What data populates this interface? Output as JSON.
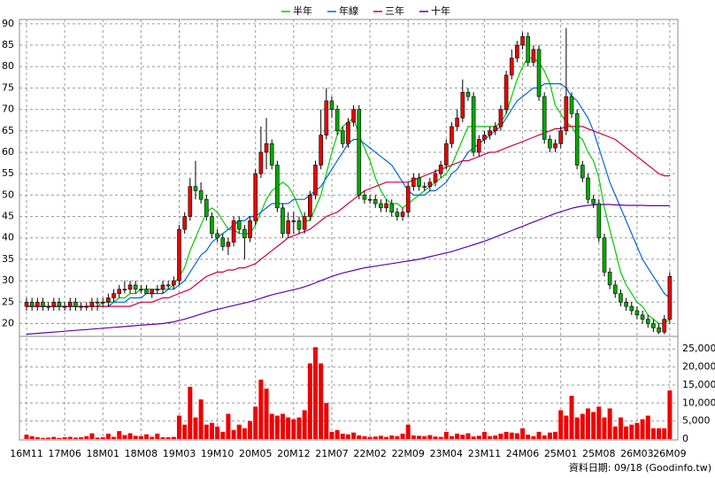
{
  "chart_data": {
    "type": "candlestick",
    "footer": "資料日期: 09/18 (Goodinfo.tw)",
    "categories": [
      "16M11",
      null,
      null,
      null,
      null,
      null,
      null,
      "17M06",
      null,
      null,
      null,
      null,
      null,
      null,
      "18M01",
      null,
      null,
      null,
      null,
      null,
      null,
      "18M08",
      null,
      null,
      null,
      null,
      null,
      null,
      "19M03",
      null,
      null,
      null,
      null,
      null,
      null,
      "19M10",
      null,
      null,
      null,
      null,
      null,
      null,
      "20M05",
      null,
      null,
      null,
      null,
      null,
      null,
      "20M12",
      null,
      null,
      null,
      null,
      null,
      null,
      "21M07",
      null,
      null,
      null,
      null,
      null,
      null,
      "22M02",
      null,
      null,
      null,
      null,
      null,
      null,
      "22M09",
      null,
      null,
      null,
      null,
      null,
      null,
      "23M04",
      null,
      null,
      null,
      null,
      null,
      null,
      "23M11",
      null,
      null,
      null,
      null,
      null,
      null,
      "24M06",
      null,
      null,
      null,
      null,
      null,
      null,
      "25M01",
      null,
      null,
      null,
      null,
      null,
      null,
      "25M08",
      null,
      null,
      null,
      null,
      null,
      null,
      "26M03",
      null,
      null,
      null,
      null,
      null,
      "26M09"
    ],
    "open": [
      24,
      25,
      24,
      25,
      24,
      24,
      25,
      24,
      24,
      25,
      24,
      24,
      24,
      25,
      25,
      25,
      26,
      27,
      28,
      28,
      29,
      28,
      28,
      27,
      28,
      28,
      29,
      29,
      30,
      42,
      45,
      52,
      51,
      49,
      45,
      41,
      40,
      38,
      39,
      44,
      42,
      40,
      44,
      55,
      60,
      62,
      57,
      47,
      41,
      44,
      44,
      42,
      45,
      50,
      57,
      64,
      72,
      70,
      65,
      62,
      67,
      70,
      50,
      49,
      49,
      48,
      47,
      48,
      46,
      45,
      46,
      52,
      54,
      52,
      52,
      53,
      55,
      57,
      62,
      66,
      68,
      74,
      73,
      60,
      63,
      64,
      65,
      66,
      70,
      78,
      82,
      85,
      87,
      81,
      84,
      73,
      63,
      61,
      62,
      65,
      73,
      69,
      57,
      54,
      49,
      48,
      40,
      32,
      29,
      27,
      25,
      24,
      23,
      22,
      21,
      20,
      19,
      18,
      21
    ],
    "high": [
      26,
      26,
      26,
      26,
      25,
      26,
      26,
      25,
      26,
      26,
      25,
      25,
      26,
      26,
      26,
      27,
      28,
      29,
      30,
      30,
      30,
      29,
      29,
      28,
      29,
      30,
      30,
      31,
      43,
      46,
      54,
      58,
      53,
      50,
      46,
      42,
      41,
      40,
      45,
      45,
      43,
      45,
      56,
      66,
      68,
      63,
      58,
      48,
      46,
      46,
      45,
      46,
      51,
      58,
      70,
      75,
      73,
      71,
      66,
      68,
      71,
      71,
      51,
      50,
      50,
      49,
      49,
      49,
      47,
      47,
      53,
      55,
      55,
      53,
      54,
      56,
      58,
      63,
      67,
      70,
      77,
      75,
      74,
      64,
      65,
      66,
      67,
      71,
      79,
      84,
      86,
      88,
      88,
      85,
      85,
      74,
      64,
      63,
      66,
      89,
      74,
      70,
      58,
      55,
      50,
      49,
      41,
      33,
      30,
      28,
      26,
      25,
      24,
      23,
      22,
      21,
      20,
      22,
      32
    ],
    "low": [
      23,
      23,
      23,
      23,
      23,
      23,
      23,
      23,
      23,
      23,
      23,
      23,
      23,
      23,
      24,
      24,
      25,
      26,
      27,
      27,
      27,
      27,
      27,
      26,
      27,
      27,
      28,
      28,
      29,
      41,
      44,
      49,
      48,
      44,
      40,
      39,
      37,
      36,
      38,
      41,
      35,
      39,
      43,
      54,
      56,
      56,
      46,
      40,
      40,
      41,
      41,
      41,
      44,
      49,
      56,
      63,
      68,
      64,
      61,
      61,
      66,
      49,
      48,
      48,
      47,
      46,
      46,
      45,
      44,
      44,
      45,
      51,
      51,
      51,
      51,
      52,
      54,
      56,
      61,
      65,
      67,
      72,
      59,
      59,
      62,
      63,
      64,
      65,
      69,
      77,
      81,
      84,
      80,
      80,
      72,
      62,
      60,
      60,
      61,
      64,
      68,
      56,
      53,
      48,
      47,
      39,
      31,
      28,
      26,
      24,
      23,
      22,
      21,
      20,
      19,
      18,
      17.5,
      17.5,
      20
    ],
    "close": [
      25,
      24,
      25,
      24,
      24,
      25,
      24,
      24,
      25,
      24,
      24,
      24,
      25,
      25,
      25,
      26,
      27,
      28,
      28,
      29,
      28,
      28,
      27,
      28,
      28,
      29,
      29,
      30,
      42,
      45,
      52,
      51,
      49,
      45,
      41,
      40,
      38,
      39,
      44,
      42,
      40,
      44,
      55,
      60,
      62,
      57,
      47,
      41,
      44,
      44,
      42,
      45,
      50,
      57,
      64,
      72,
      70,
      65,
      62,
      67,
      70,
      50,
      49,
      49,
      48,
      47,
      48,
      46,
      45,
      46,
      52,
      54,
      52,
      52,
      53,
      55,
      57,
      62,
      66,
      68,
      74,
      73,
      60,
      63,
      64,
      65,
      66,
      70,
      78,
      82,
      85,
      87,
      81,
      84,
      73,
      63,
      61,
      62,
      65,
      73,
      69,
      57,
      54,
      49,
      48,
      40,
      32,
      29,
      27,
      25,
      24,
      23,
      22,
      21,
      20,
      19,
      18,
      21,
      31
    ],
    "volume": [
      1200,
      800,
      500,
      300,
      400,
      600,
      300,
      500,
      600,
      400,
      500,
      800,
      1600,
      400,
      500,
      1500,
      600,
      2200,
      1100,
      1600,
      900,
      800,
      1300,
      600,
      1500,
      500,
      500,
      600,
      6500,
      4000,
      14500,
      6000,
      11000,
      4000,
      4500,
      3500,
      2000,
      7000,
      2500,
      4000,
      3000,
      5000,
      9000,
      16500,
      14000,
      7000,
      6500,
      7000,
      6000,
      5500,
      6000,
      8000,
      21000,
      25500,
      21000,
      10000,
      2000,
      2500,
      1500,
      1300,
      1800,
      1000,
      800,
      600,
      700,
      900,
      600,
      1000,
      800,
      1500,
      4000,
      1000,
      900,
      800,
      1100,
      700,
      600,
      2000,
      800,
      1500,
      1200,
      1600,
      700,
      900,
      2000,
      800,
      1000,
      1500,
      2000,
      1800,
      1600,
      3000,
      1200,
      800,
      2000,
      1000,
      1800,
      2000,
      8000,
      6500,
      12000,
      6000,
      7000,
      8500,
      7500,
      9000,
      6000,
      8500,
      3500,
      6000,
      3500,
      4000,
      4500,
      5500,
      6500,
      3000,
      3000,
      3000,
      13500
    ],
    "up_color": "#ee0000",
    "down_color": "#00aa00",
    "volume_color": "#ee0000",
    "series": [
      {
        "name": "半年",
        "color": "#00cc00",
        "values": [
          24,
          24,
          24,
          24,
          24,
          24,
          24,
          24,
          24,
          24,
          24,
          24,
          24,
          24,
          25,
          25,
          25,
          26,
          26,
          27,
          27,
          28,
          28,
          28,
          28,
          28,
          28,
          29,
          31,
          33,
          37,
          40,
          43,
          46,
          47,
          46,
          44,
          42,
          42,
          41,
          41,
          41,
          43,
          46,
          49,
          51,
          52,
          53,
          52,
          50,
          47,
          44,
          44,
          47,
          50,
          55,
          60,
          64,
          66,
          67,
          68,
          64,
          61,
          58,
          54,
          51,
          49,
          48,
          48,
          47,
          48,
          49,
          50,
          51,
          52,
          53,
          54,
          55,
          57,
          60,
          63,
          66,
          66,
          66,
          66,
          66,
          66,
          67,
          69,
          73,
          77,
          80,
          82,
          82,
          81,
          79,
          76,
          71,
          69,
          67,
          66,
          64,
          63,
          60,
          58,
          54,
          47,
          42,
          37,
          32,
          29,
          27,
          25,
          24,
          22,
          21,
          20,
          20,
          21
        ]
      },
      {
        "name": "年線",
        "color": "#0066dd",
        "values": [
          24,
          24,
          24,
          24,
          24,
          24,
          24,
          24,
          24,
          24,
          24,
          24,
          24,
          24,
          24,
          24,
          25,
          25,
          25,
          26,
          26,
          26,
          27,
          27,
          27,
          27,
          28,
          28,
          29,
          30,
          32,
          34,
          36,
          37,
          39,
          40,
          41,
          42,
          43,
          44,
          44,
          45,
          45,
          46,
          47,
          48,
          48,
          48,
          48,
          49,
          49,
          49,
          50,
          51,
          52,
          54,
          56,
          58,
          60,
          62,
          63,
          63,
          62,
          61,
          60,
          59,
          58,
          57,
          55,
          53,
          51,
          50,
          50,
          50,
          51,
          51,
          52,
          53,
          55,
          56,
          58,
          60,
          61,
          62,
          63,
          64,
          65,
          66,
          68,
          70,
          72,
          73,
          74,
          75,
          75,
          76,
          76,
          76,
          76,
          75,
          73,
          72,
          70,
          68,
          65,
          61,
          57,
          53,
          50,
          47,
          44,
          41,
          38,
          35,
          33,
          31,
          29,
          27,
          26
        ]
      },
      {
        "name": "三年",
        "color": "#cc0044",
        "values": [
          24,
          24,
          24,
          24,
          24,
          24,
          24,
          24,
          24,
          24,
          24,
          24,
          24,
          24,
          24,
          24,
          24,
          24,
          24,
          24,
          24.5,
          25,
          25,
          25,
          25.5,
          26,
          26,
          26.5,
          27,
          27.5,
          28,
          29,
          30,
          31,
          31.5,
          32,
          32,
          32.5,
          32.5,
          33,
          33,
          33.5,
          34,
          35,
          36,
          37,
          38,
          39,
          40,
          40.5,
          41,
          41.5,
          42,
          43,
          44,
          45,
          45.5,
          46,
          47,
          48,
          49,
          50,
          51,
          51.5,
          52,
          52.5,
          53,
          53,
          53,
          53,
          53,
          53.5,
          54,
          54.5,
          55,
          55.5,
          56,
          56.5,
          57,
          57.5,
          58,
          58,
          58.5,
          59,
          59.5,
          60,
          60,
          60.5,
          61,
          61.5,
          62,
          62.5,
          63,
          63.5,
          64,
          64.5,
          65,
          65.5,
          65.5,
          66,
          66,
          66,
          66,
          65.5,
          65,
          64.5,
          64,
          63.5,
          63,
          62,
          61,
          60,
          59,
          58,
          57,
          56,
          55,
          54.5,
          54.5
        ]
      },
      {
        "name": "十年",
        "color": "#6600aa",
        "values": [
          17.5,
          17.6,
          17.7,
          17.8,
          17.9,
          18,
          18.1,
          18.2,
          18.3,
          18.4,
          18.5,
          18.6,
          18.7,
          18.8,
          18.9,
          19,
          19.1,
          19.2,
          19.3,
          19.4,
          19.5,
          19.6,
          19.7,
          19.8,
          19.9,
          20,
          20.2,
          20.4,
          20.7,
          21,
          21.4,
          21.8,
          22.2,
          22.6,
          23,
          23.3,
          23.6,
          23.9,
          24.2,
          24.5,
          24.8,
          25.1,
          25.5,
          25.9,
          26.3,
          26.7,
          27,
          27.3,
          27.6,
          27.9,
          28.2,
          28.6,
          29,
          29.5,
          30,
          30.5,
          31,
          31.4,
          31.8,
          32.1,
          32.4,
          32.7,
          33,
          33.2,
          33.4,
          33.6,
          33.8,
          34,
          34.2,
          34.4,
          34.6,
          34.8,
          35,
          35.3,
          35.6,
          35.9,
          36.2,
          36.5,
          36.8,
          37.2,
          37.6,
          38,
          38.4,
          38.8,
          39.2,
          39.7,
          40.2,
          40.7,
          41.2,
          41.7,
          42.2,
          42.7,
          43.2,
          43.7,
          44.2,
          44.7,
          45.2,
          45.7,
          46.1,
          46.5,
          46.9,
          47.2,
          47.4,
          47.6,
          47.7,
          47.8,
          47.8,
          47.8,
          47.7,
          47.7,
          47.6,
          47.6,
          47.6,
          47.6,
          47.5,
          47.5,
          47.5,
          47.5,
          47.5
        ]
      }
    ],
    "ylim": [
      17,
      91
    ],
    "yticks": [
      20,
      25,
      30,
      35,
      40,
      45,
      50,
      55,
      60,
      65,
      70,
      75,
      80,
      85,
      90
    ],
    "y2lim": [
      0,
      28500
    ],
    "y2ticks": [
      0,
      {
        "value": 5000,
        "label": "5,000"
      },
      {
        "value": 10000,
        "label": "10,000"
      },
      {
        "value": 15000,
        "label": "15,000"
      },
      {
        "value": 20000,
        "label": "20,000"
      },
      {
        "value": 25000,
        "label": "25,000"
      }
    ],
    "grid": true
  }
}
